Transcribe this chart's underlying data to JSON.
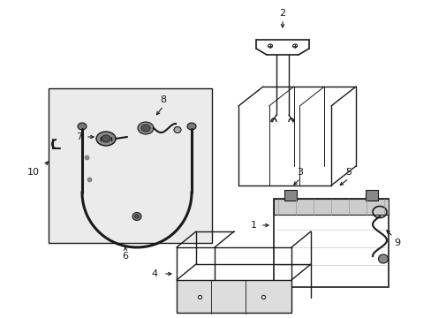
{
  "background_color": "#ffffff",
  "line_color": "#1a1a1a",
  "box_fill": "#e8e8e8",
  "fig_width": 4.89,
  "fig_height": 3.6,
  "dpi": 100
}
